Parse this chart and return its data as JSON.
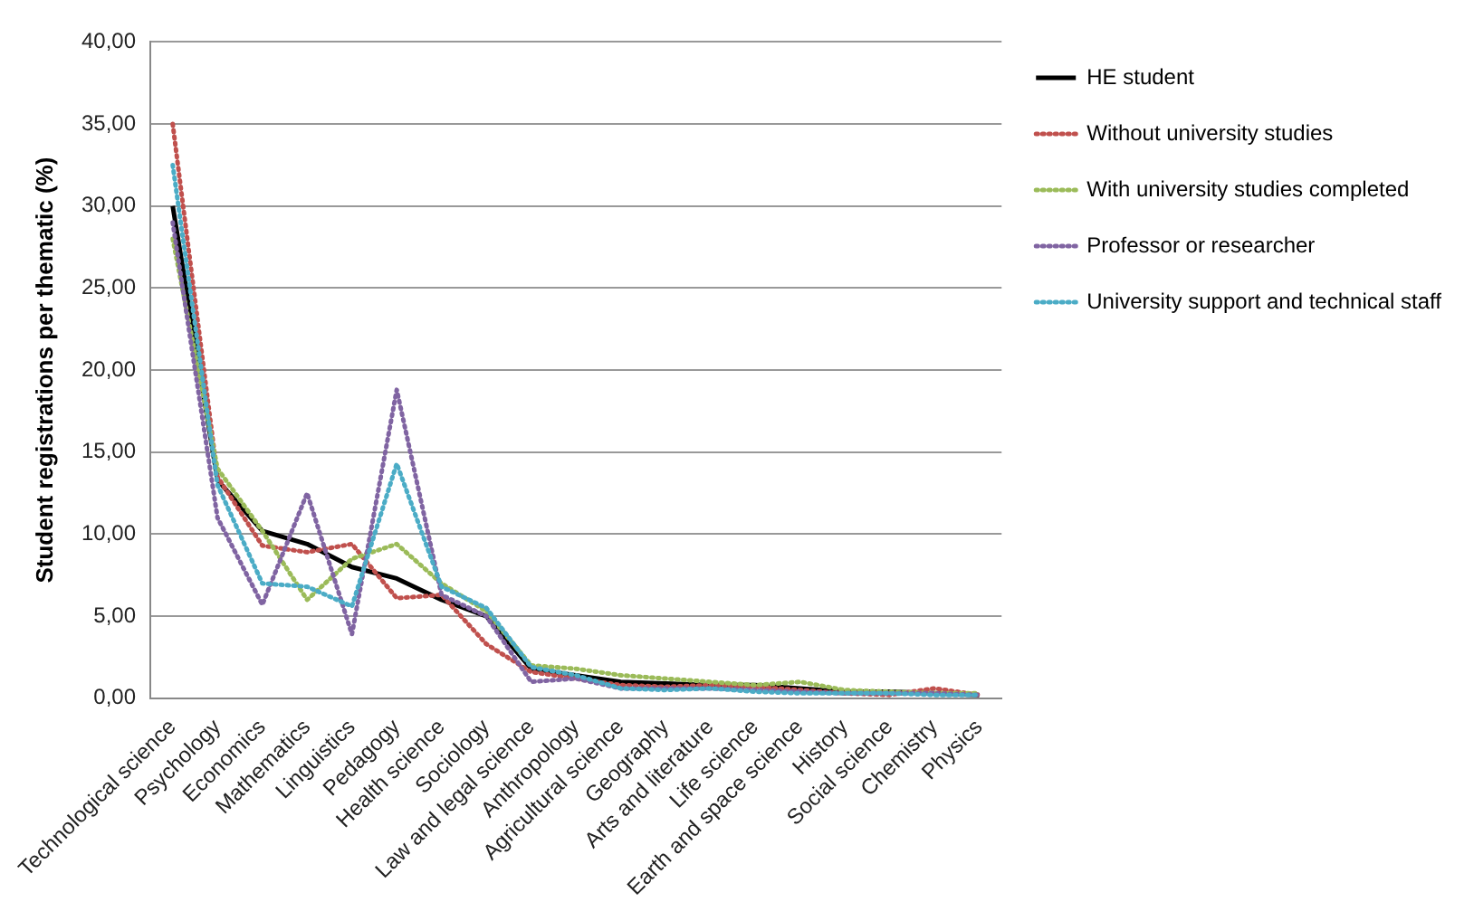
{
  "chart_data": {
    "type": "line",
    "ylabel": "Student registrations per thematic (%)",
    "categories": [
      "Technological science",
      "Psychology",
      "Economics",
      "Mathematics",
      "Linguistics",
      "Pedagogy",
      "Health science",
      "Sociology",
      "Law and legal science",
      "Anthropology",
      "Agricultural science",
      "Geography",
      "Arts and literature",
      "Life science",
      "Earth and space science",
      "History",
      "Social science",
      "Chemistry",
      "Physics"
    ],
    "ylim": [
      0,
      40
    ],
    "yticks": [
      {
        "value": 0,
        "label": "0,00"
      },
      {
        "value": 5,
        "label": "5,00"
      },
      {
        "value": 10,
        "label": "10,00"
      },
      {
        "value": 15,
        "label": "15,00"
      },
      {
        "value": 20,
        "label": "20,00"
      },
      {
        "value": 25,
        "label": "25,00"
      },
      {
        "value": 30,
        "label": "30,00"
      },
      {
        "value": 35,
        "label": "35,00"
      },
      {
        "value": 40,
        "label": "40,00"
      }
    ],
    "grid": "y",
    "legend": "right",
    "marker": "none",
    "series": [
      {
        "name": "HE student",
        "color": "#000000",
        "line_style": "solid",
        "values": [
          30,
          13.3,
          10.2,
          9.4,
          8.0,
          7.3,
          6.0,
          5.0,
          1.8,
          1.4,
          1.0,
          0.9,
          0.8,
          0.8,
          0.6,
          0.4,
          0.4,
          0.3,
          0.2
        ]
      },
      {
        "name": "Without university studies",
        "color": "#c0504d",
        "line_style": "dotted",
        "values": [
          35,
          13.5,
          9.3,
          8.9,
          9.4,
          6.1,
          6.3,
          3.3,
          1.6,
          1.2,
          0.8,
          0.7,
          0.8,
          0.7,
          0.5,
          0.3,
          0.2,
          0.6,
          0.2
        ]
      },
      {
        "name": "With university studies completed",
        "color": "#9bbb59",
        "line_style": "dotted",
        "values": [
          28,
          14,
          10.2,
          6.0,
          8.5,
          9.4,
          7.0,
          5.3,
          2.0,
          1.8,
          1.4,
          1.2,
          1.0,
          0.8,
          1.0,
          0.5,
          0.4,
          0.3,
          0.3
        ]
      },
      {
        "name": "Professor or researcher",
        "color": "#8064a2",
        "line_style": "dotted",
        "values": [
          29,
          11,
          5.7,
          12.5,
          3.9,
          18.8,
          6.3,
          5.0,
          1.0,
          1.2,
          0.6,
          0.6,
          0.6,
          0.5,
          0.4,
          0.3,
          0.3,
          0.3,
          0.2
        ]
      },
      {
        "name": "University support and technical staff",
        "color": "#4bacc6",
        "line_style": "dotted",
        "values": [
          32.5,
          13,
          7.0,
          6.8,
          5.6,
          14.3,
          6.8,
          5.5,
          1.9,
          1.4,
          0.6,
          0.5,
          0.6,
          0.4,
          0.3,
          0.3,
          0.3,
          0.2,
          0.2
        ]
      }
    ]
  }
}
